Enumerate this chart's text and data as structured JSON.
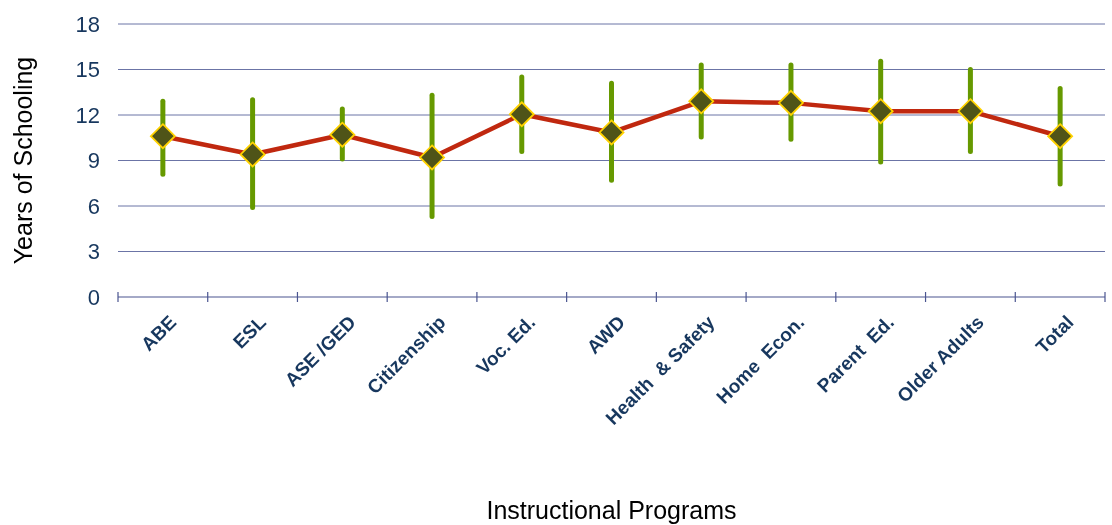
{
  "chart_data": {
    "type": "line",
    "xlabel": "Instructional Programs",
    "ylabel": "Years of Schooling",
    "categories": [
      "ABE",
      "ESL",
      "ASE /GED",
      "Citizenship",
      "Voc. Ed.",
      "AWD",
      "Health  & Safety",
      "Home  Econ.",
      "Parent  Ed.",
      "Older Adults",
      "Total"
    ],
    "series": [
      {
        "color": "#c0280f",
        "values": [
          10.6,
          9.4,
          10.7,
          9.2,
          12.05,
          10.85,
          12.9,
          12.8,
          12.25,
          12.25,
          10.6
        ],
        "errors": [
          [
            8.1,
            12.9
          ],
          [
            5.9,
            13.0
          ],
          [
            9.1,
            12.4
          ],
          [
            5.3,
            13.3
          ],
          [
            9.6,
            14.5
          ],
          [
            7.7,
            14.1
          ],
          [
            10.55,
            15.3
          ],
          [
            10.4,
            15.3
          ],
          [
            8.9,
            15.55
          ],
          [
            9.6,
            15.0
          ],
          [
            7.45,
            13.75
          ]
        ]
      }
    ],
    "ylim": [
      0,
      18
    ],
    "yticks": [
      0,
      3,
      6,
      9,
      12,
      15,
      18
    ],
    "grid": "y",
    "marker": "diamond"
  }
}
